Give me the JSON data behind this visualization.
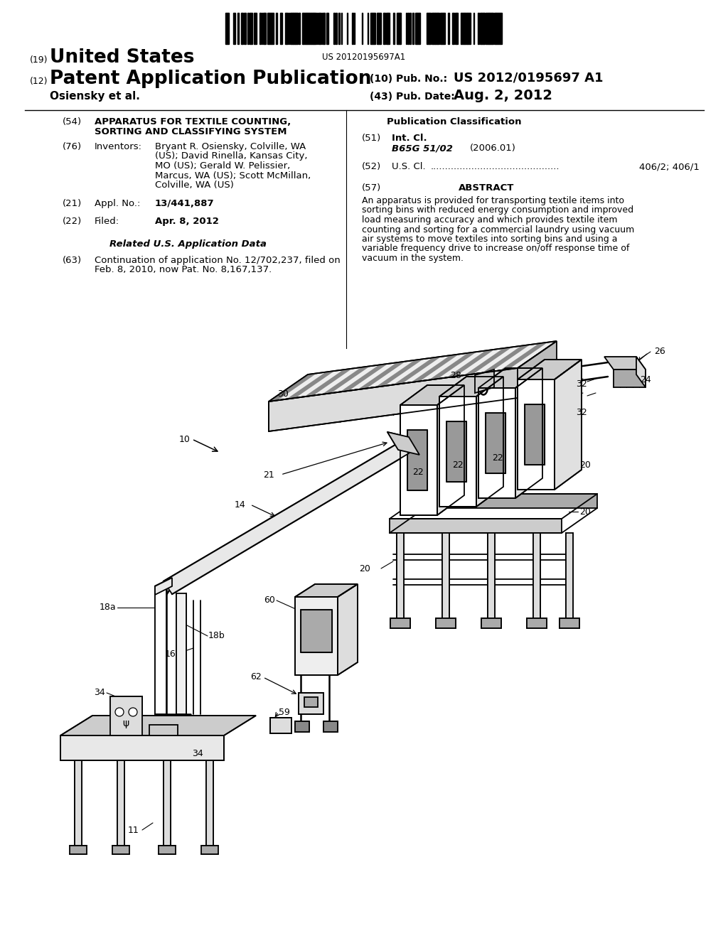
{
  "bg_color": "#ffffff",
  "barcode_text": "US 20120195697A1",
  "country_label": "(19)",
  "country_name": "United States",
  "pub_type_label": "(12)",
  "pub_type": "Patent Application Publication",
  "inventor_line": "Osiensky et al.",
  "pub_no_label": "(10) Pub. No.:",
  "pub_no": "US 2012/0195697 A1",
  "pub_date_label": "(43) Pub. Date:",
  "pub_date": "Aug. 2, 2012",
  "section54_label": "(54)",
  "section54_title_line1": "APPARATUS FOR TEXTILE COUNTING,",
  "section54_title_line2": "SORTING AND CLASSIFYING SYSTEM",
  "section76_label": "(76)",
  "section76_key": "Inventors:",
  "section76_val_line1": "Bryant R. Osiensky, Colville, WA",
  "section76_val_line2": "(US); David Rinella, Kansas City,",
  "section76_val_line3": "MO (US); Gerald W. Pelissier,",
  "section76_val_line4": "Marcus, WA (US); Scott McMillan,",
  "section76_val_line5": "Colville, WA (US)",
  "section21_label": "(21)",
  "section21_key": "Appl. No.:",
  "section21_val": "13/441,887",
  "section22_label": "(22)",
  "section22_key": "Filed:",
  "section22_val": "Apr. 8, 2012",
  "related_title": "Related U.S. Application Data",
  "section63_label": "(63)",
  "section63_line1": "Continuation of application No. 12/702,237, filed on",
  "section63_line2": "Feb. 8, 2010, now Pat. No. 8,167,137.",
  "pub_class_title": "Publication Classification",
  "section51_label": "(51)",
  "section51_key": "Int. Cl.",
  "section51_class": "B65G 51/02",
  "section51_year": "(2006.01)",
  "section52_label": "(52)",
  "section52_key": "U.S. Cl.",
  "section52_dots": "............................................",
  "section52_val": "406/2; 406/1",
  "section57_label": "(57)",
  "section57_title": "ABSTRACT",
  "abstract_lines": [
    "An apparatus is provided for transporting textile items into",
    "sorting bins with reduced energy consumption and improved",
    "load measuring accuracy and which provides textile item",
    "counting and sorting for a commercial laundry using vacuum",
    "air systems to move textiles into sorting bins and using a",
    "variable frequency drive to increase on/off response time of",
    "vacuum in the system."
  ]
}
